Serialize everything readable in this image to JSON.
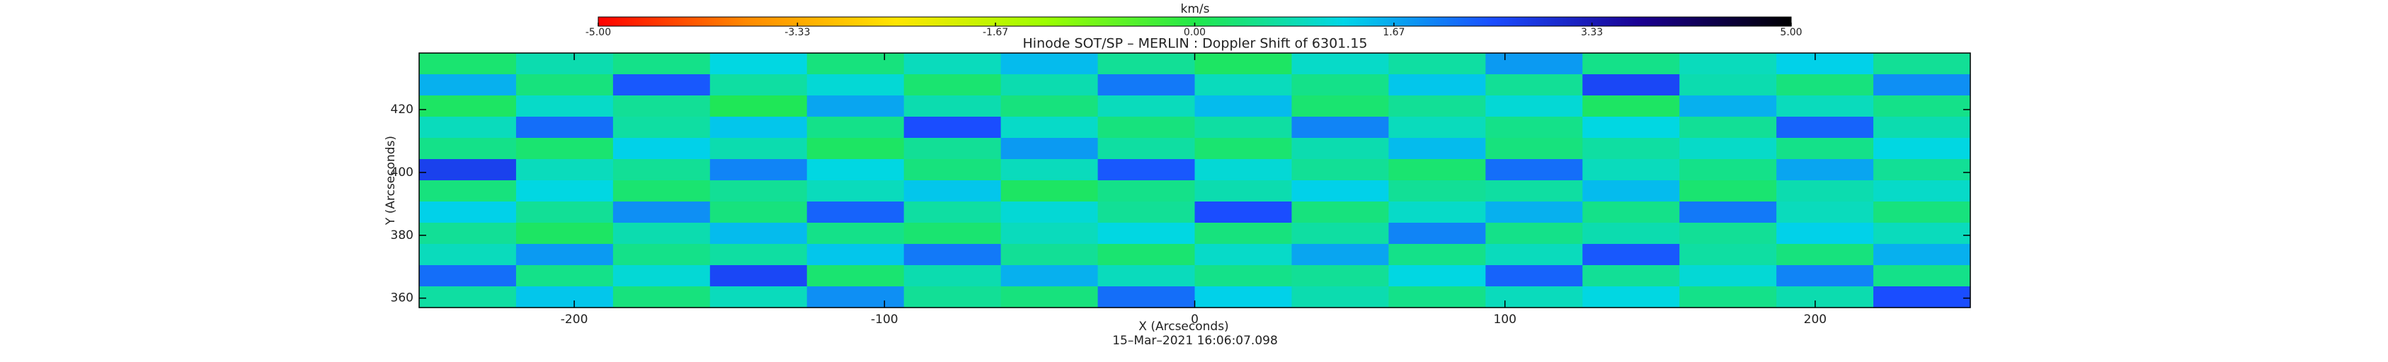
{
  "chart_data": {
    "type": "heatmap",
    "title": "Hinode SOT/SP – MERLIN : Doppler Shift of 6301.15",
    "x_label": "X (Arcseconds)",
    "y_label": "Y (Arcseconds)",
    "date": "15–Mar–2021 16:06:07.098",
    "colorbar": {
      "label": "km/s",
      "lim": [
        -5,
        5
      ],
      "ticks": [
        {
          "value": -5,
          "label": "-5.00"
        },
        -3.33,
        -1.67,
        {
          "value": 0,
          "label": "0.00"
        },
        1.67,
        3.33,
        {
          "value": 5,
          "label": "5.00"
        }
      ],
      "colors": [
        "#ff0000",
        "#ff8a00",
        "#ffe600",
        "#9cff00",
        "#22e84a",
        "#00d6e8",
        "#1a4dff",
        "#1a0090",
        "#000000"
      ]
    },
    "xlim": [
      -250,
      250
    ],
    "xticks": [
      -200,
      -100,
      0,
      100,
      200
    ],
    "ylim": [
      357,
      438
    ],
    "yticks": [
      360,
      380,
      400,
      420
    ],
    "z": [
      [
        0.3,
        0.8,
        0.5,
        1.2,
        0.4,
        0.9,
        1.5,
        0.6,
        0.2,
        1.0,
        0.7,
        1.8,
        0.5,
        0.9,
        1.3,
        0.6
      ],
      [
        1.6,
        0.4,
        2.4,
        0.7,
        1.1,
        0.3,
        0.8,
        2.1,
        0.9,
        0.5,
        1.4,
        0.6,
        2.6,
        0.8,
        0.4,
        1.9
      ],
      [
        0.2,
        1.0,
        0.6,
        0.1,
        1.7,
        0.8,
        0.4,
        0.9,
        1.5,
        0.3,
        0.6,
        1.1,
        0.2,
        1.6,
        0.9,
        0.5
      ],
      [
        0.9,
        2.2,
        0.7,
        1.4,
        0.5,
        2.5,
        1.0,
        0.4,
        0.7,
        2.0,
        0.9,
        0.5,
        1.2,
        0.6,
        2.3,
        0.8
      ],
      [
        0.5,
        0.3,
        1.3,
        0.8,
        0.2,
        0.6,
        1.8,
        0.7,
        0.3,
        0.8,
        1.5,
        0.4,
        0.7,
        1.0,
        0.5,
        1.2
      ],
      [
        2.7,
        0.9,
        0.6,
        2.0,
        1.2,
        0.4,
        0.9,
        2.4,
        1.1,
        0.6,
        0.3,
        2.2,
        0.9,
        0.5,
        1.7,
        0.6
      ],
      [
        0.4,
        1.2,
        0.3,
        0.6,
        0.9,
        1.4,
        0.2,
        0.5,
        0.8,
        1.3,
        0.6,
        0.7,
        1.5,
        0.3,
        0.8,
        1.0
      ],
      [
        1.3,
        0.6,
        1.9,
        0.4,
        2.3,
        0.7,
        1.1,
        0.6,
        2.5,
        0.4,
        1.0,
        1.6,
        0.5,
        2.1,
        0.9,
        0.4
      ],
      [
        0.6,
        0.2,
        0.8,
        1.5,
        0.5,
        0.3,
        0.9,
        1.2,
        0.4,
        0.7,
        2.0,
        0.5,
        0.8,
        0.6,
        1.3,
        0.9
      ],
      [
        0.9,
        1.8,
        0.5,
        0.7,
        1.4,
        2.1,
        0.6,
        0.3,
        1.0,
        1.7,
        0.5,
        0.9,
        2.4,
        0.7,
        0.4,
        1.6
      ],
      [
        2.2,
        0.5,
        1.1,
        2.6,
        0.3,
        0.8,
        1.6,
        0.9,
        0.5,
        0.6,
        1.2,
        2.3,
        0.6,
        1.1,
        2.0,
        0.5
      ],
      [
        0.7,
        1.4,
        0.4,
        0.9,
        1.9,
        0.6,
        0.4,
        2.2,
        1.3,
        0.8,
        0.5,
        0.9,
        1.2,
        0.5,
        0.8,
        2.5
      ]
    ]
  }
}
